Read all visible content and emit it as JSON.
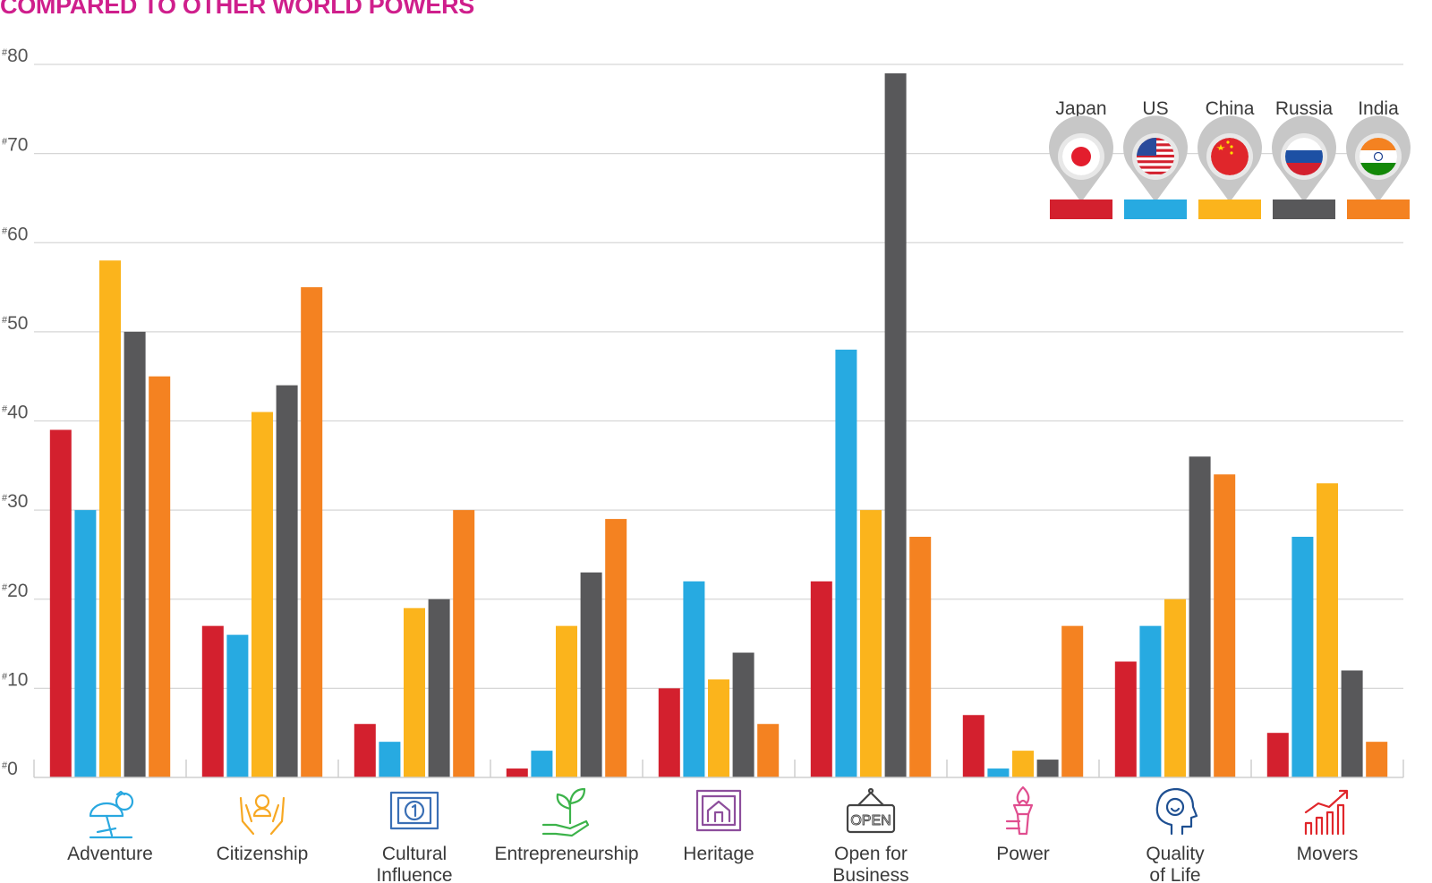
{
  "title": "COMPARED TO OTHER WORLD POWERS",
  "colors": {
    "title": "#cf1f8c",
    "grid": "#d6d6d6"
  },
  "chart_data": {
    "type": "bar",
    "categories": [
      "Adventure",
      "Citizenship",
      "Cultural\nInfluence",
      "Entrepreneurship",
      "Heritage",
      "Open for\nBusiness",
      "Power",
      "Quality\nof Life",
      "Movers"
    ],
    "category_icons": [
      "beach-icon",
      "hands-person-icon",
      "film-reel-icon",
      "hand-plant-icon",
      "monument-picture-icon",
      "open-sign-icon",
      "torch-icon",
      "smiling-head-icon",
      "growth-bars-icon"
    ],
    "category_icon_colors": [
      "#29a8e0",
      "#f7a823",
      "#3a6fb5",
      "#3cb34a",
      "#8d4e9c",
      "#444444",
      "#e04e8f",
      "#1e4f91",
      "#e0262b"
    ],
    "yticks": [
      "#0",
      "#10",
      "#20",
      "#30",
      "#40",
      "#50",
      "#60",
      "#70",
      "#80"
    ],
    "ylim": [
      0,
      80
    ],
    "grid": true,
    "legend_position": "top-right",
    "series": [
      {
        "name": "Japan",
        "color": "#d3202e",
        "flag": "japan-flag-icon",
        "values": [
          39,
          17,
          6,
          1,
          10,
          22,
          7,
          13,
          5
        ]
      },
      {
        "name": "US",
        "color": "#27aae1",
        "flag": "us-flag-icon",
        "values": [
          30,
          16,
          4,
          3,
          22,
          48,
          1,
          17,
          27
        ]
      },
      {
        "name": "China",
        "color": "#fbb41c",
        "flag": "china-flag-icon",
        "values": [
          58,
          41,
          19,
          17,
          11,
          30,
          3,
          20,
          33
        ]
      },
      {
        "name": "Russia",
        "color": "#58585a",
        "flag": "russia-flag-icon",
        "values": [
          50,
          44,
          20,
          23,
          14,
          79,
          2,
          36,
          12
        ]
      },
      {
        "name": "India",
        "color": "#f48221",
        "flag": "india-flag-icon",
        "values": [
          45,
          55,
          30,
          29,
          6,
          27,
          17,
          34,
          4
        ]
      }
    ]
  }
}
